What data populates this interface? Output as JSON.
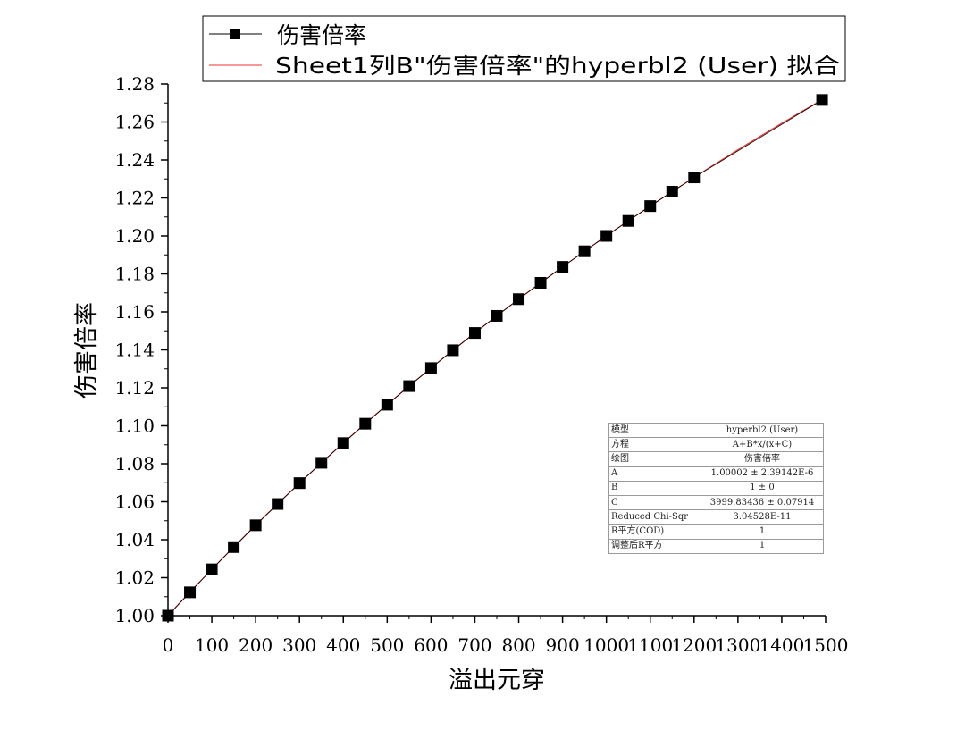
{
  "chart_data": {
    "type": "scatter",
    "xlabel": "溢出元穿",
    "ylabel": "伤害倍率",
    "xlim": [
      0,
      1500
    ],
    "ylim": [
      1.0,
      1.28
    ],
    "x_ticks": [
      0,
      100,
      200,
      300,
      400,
      500,
      600,
      700,
      800,
      900,
      1000,
      1100,
      1200,
      1300,
      1400,
      1500
    ],
    "x_tick_labels": [
      "0",
      "100",
      "200",
      "300",
      "400",
      "500",
      "600",
      "700",
      "800",
      "900",
      "1000",
      "1100",
      "1200",
      "1300",
      "1400",
      "1500"
    ],
    "y_ticks": [
      1.0,
      1.02,
      1.04,
      1.06,
      1.08,
      1.1,
      1.12,
      1.14,
      1.16,
      1.18,
      1.2,
      1.22,
      1.24,
      1.26,
      1.28
    ],
    "y_tick_labels": [
      "1.00",
      "1.02",
      "1.04",
      "1.06",
      "1.08",
      "1.10",
      "1.12",
      "1.14",
      "1.16",
      "1.18",
      "1.20",
      "1.22",
      "1.24",
      "1.26",
      "1.28"
    ],
    "grid": false,
    "legend_position": "top",
    "series": [
      {
        "name": "伤害倍率",
        "kind": "line+square-markers",
        "color": "#000000",
        "x": [
          0,
          50,
          100,
          150,
          200,
          250,
          300,
          350,
          400,
          450,
          500,
          550,
          600,
          650,
          700,
          750,
          800,
          850,
          900,
          950,
          1000,
          1050,
          1100,
          1150,
          1200,
          1492
        ],
        "y": [
          1.0,
          1.0123,
          1.0244,
          1.0361,
          1.0476,
          1.0588,
          1.0698,
          1.0805,
          1.0909,
          1.1011,
          1.1111,
          1.1209,
          1.1304,
          1.1398,
          1.1489,
          1.1579,
          1.1667,
          1.1753,
          1.1837,
          1.1919,
          1.2,
          1.2079,
          1.2157,
          1.2233,
          1.2308,
          1.2716
        ]
      },
      {
        "name": "Sheet1列B\"伤害倍率\"的hyperbl2 (User) 拟合",
        "kind": "fit-line",
        "color": "#e8332e",
        "model": "A+B*x/(x+C)",
        "params": {
          "A": 1.00002,
          "B": 1,
          "C": 3999.83436
        }
      }
    ]
  },
  "legend": {
    "entries": [
      {
        "label": "伤害倍率"
      },
      {
        "label": "Sheet1列B\"伤害倍率\"的hyperbl2 (User) 拟合"
      }
    ]
  },
  "fit_table": {
    "rows": [
      {
        "key": "模型",
        "value": "hyperbl2 (User)"
      },
      {
        "key": "方程",
        "value": "A+B*x/(x+C)"
      },
      {
        "key": "绘图",
        "value": "伤害倍率"
      },
      {
        "key": "A",
        "value": "1.00002 ± 2.39142E-6"
      },
      {
        "key": "B",
        "value": "1 ± 0"
      },
      {
        "key": "C",
        "value": "3999.83436 ± 0.07914"
      },
      {
        "key": "Reduced Chi-Sqr",
        "value": "3.04528E-11"
      },
      {
        "key": "R平方(COD)",
        "value": "1"
      },
      {
        "key": "调整后R平方",
        "value": "1"
      }
    ]
  }
}
